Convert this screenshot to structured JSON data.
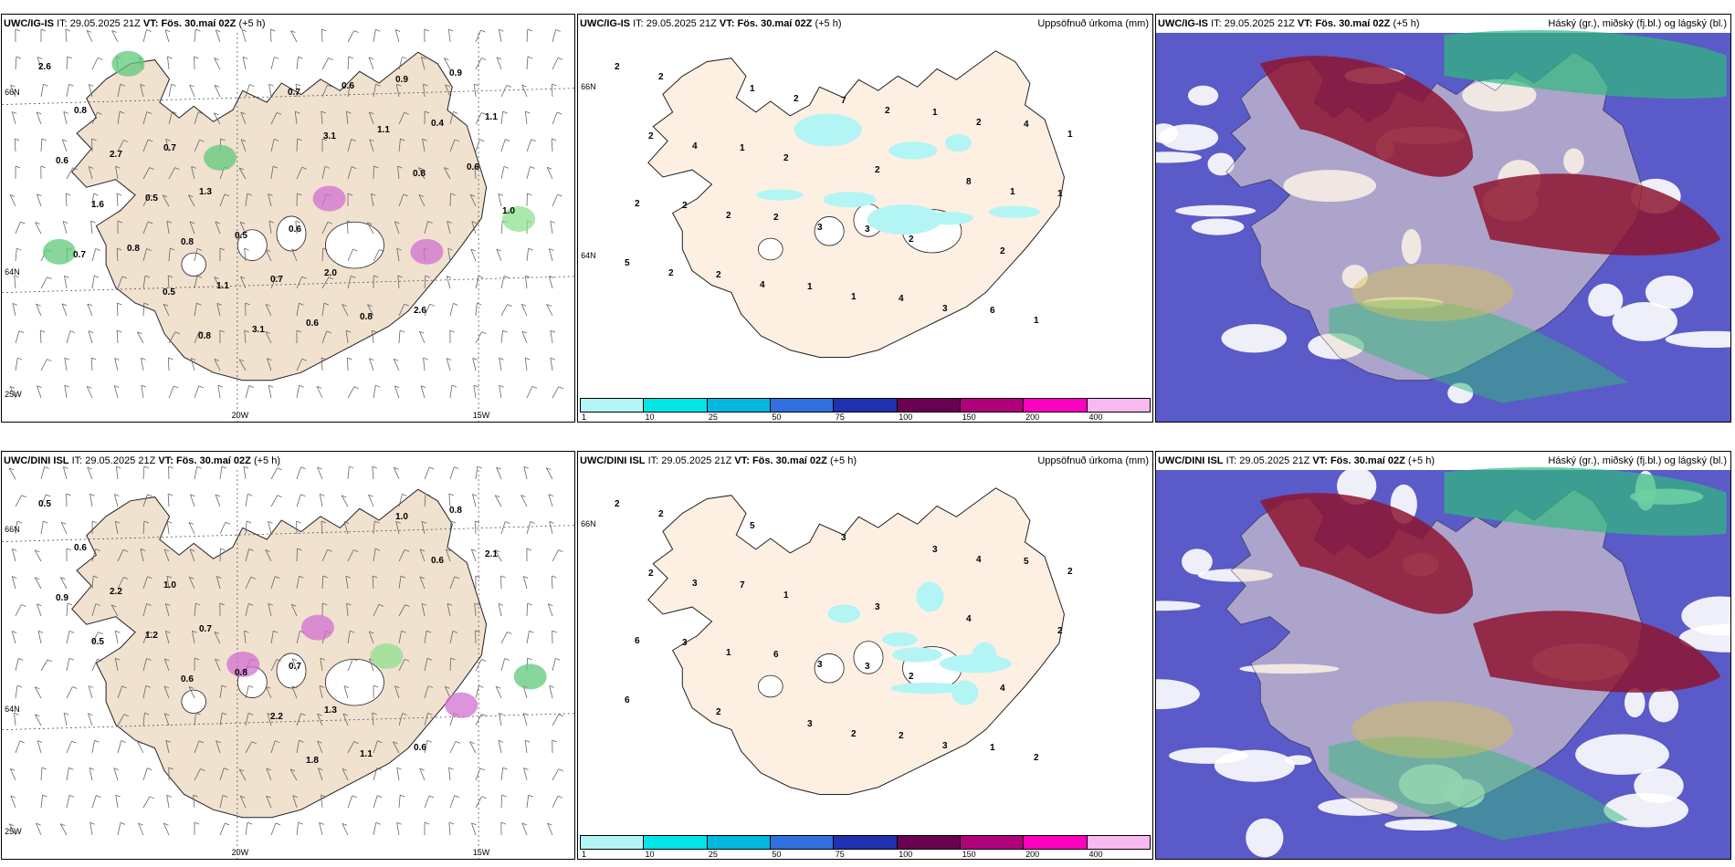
{
  "panels": [
    {
      "row": "top",
      "col": "wind",
      "model": "UWC/IG-IS",
      "it_label": "IT:",
      "it": "29.05.2025 21Z",
      "vt_label": "VT:",
      "vt": "Fös. 30.maí 02Z",
      "lead": "(+5 h)",
      "right": "",
      "axis_labels": [
        "20W",
        "15W",
        "66N",
        "64N",
        "25W"
      ]
    },
    {
      "row": "top",
      "col": "precip",
      "model": "UWC/IG-IS",
      "it_label": "IT:",
      "it": "29.05.2025 21Z",
      "vt_label": "VT:",
      "vt": "Fös. 30.maí 02Z",
      "lead": "(+5 h)",
      "right": "Uppsöfnuð úrkoma (mm)",
      "axis_labels": [
        "66N",
        "64N"
      ]
    },
    {
      "row": "top",
      "col": "cloud",
      "model": "UWC/IG-IS",
      "it_label": "IT:",
      "it": "29.05.2025 21Z",
      "vt_label": "VT:",
      "vt": "Fös. 30.maí 02Z",
      "lead": "(+5 h)",
      "right": "Háský (gr.), miðský (fj.bl.) og lágský (bl.)",
      "axis_labels": []
    },
    {
      "row": "bottom",
      "col": "wind",
      "model": "UWC/DINI ISL",
      "it_label": "IT:",
      "it": "29.05.2025 21Z",
      "vt_label": "VT:",
      "vt": "Fös. 30.maí 02Z",
      "lead": "(+5 h)",
      "right": "",
      "axis_labels": [
        "20W",
        "15W",
        "66N",
        "64N",
        "25W"
      ]
    },
    {
      "row": "bottom",
      "col": "precip",
      "model": "UWC/DINI ISL",
      "it_label": "IT:",
      "it": "29.05.2025 21Z",
      "vt_label": "VT:",
      "vt": "Fös. 30.maí 02Z",
      "lead": "(+5 h)",
      "right": "Uppsöfnuð úrkoma (mm)",
      "axis_labels": [
        "66N"
      ]
    },
    {
      "row": "bottom",
      "col": "cloud",
      "model": "UWC/DINI ISL",
      "it_label": "IT:",
      "it": "29.05.2025 21Z",
      "vt_label": "VT:",
      "vt": "Fös. 30.maí 02Z",
      "lead": "(+5 h)",
      "right": "Háský (gr.), miðský (fj.bl.) og lágský (bl.)",
      "axis_labels": []
    }
  ],
  "colorbar": {
    "ticks": [
      "1",
      "10",
      "25",
      "50",
      "75",
      "100",
      "150",
      "200",
      "400"
    ],
    "colors": [
      "#b3f5f5",
      "#00e5e5",
      "#00b8e0",
      "#2f6fe0",
      "#2030b0",
      "#6a0050",
      "#b0007a",
      "#ff00c0",
      "#f8b8f0"
    ]
  },
  "colors": {
    "land": "#f1e1cf",
    "land_precip": "#fdf0e2",
    "cloud_mid": "#5a5ac8",
    "cloud_high": "#8e1530",
    "cloud_low": "#2fba7a"
  },
  "wind_top_labels": [
    "2.6",
    "0.7",
    "0.6",
    "2.6",
    "0.8",
    "1.3",
    "2.0",
    "0.9",
    "2.7",
    "0.5",
    "0.8",
    "1.1",
    "0.5",
    "0.7",
    "0.9",
    "0.6",
    "0.8",
    "0.6",
    "0.4",
    "1.6",
    "1.1",
    "0.6",
    "0.6",
    "0.8",
    "3.1",
    "1.1",
    "1.0",
    "0.5",
    "0.7",
    "0.8",
    "0.7",
    "0.8",
    "3.1"
  ],
  "wind_bottom_labels": [
    "0.5",
    "1.0",
    "0.7",
    "0.6",
    "0.6",
    "0.7",
    "1.3",
    "0.8",
    "2.2",
    "0.8",
    "1.1",
    "2.1",
    "1.2",
    "2.2",
    "1.0",
    "0.9",
    "0.6",
    "1.8",
    "0.6",
    "0.5"
  ],
  "precip_top_labels": [
    "2",
    "1",
    "3",
    "6",
    "2",
    "2",
    "4",
    "4",
    "2",
    "1",
    "1",
    "1",
    "2",
    "7",
    "8",
    "5",
    "1",
    "2",
    "2",
    "2",
    "2",
    "2",
    "1",
    "4",
    "3",
    "3",
    "1",
    "2",
    "1",
    "2",
    "2",
    "4",
    "2",
    "1",
    "2",
    "2"
  ],
  "precip_bottom_labels": [
    "2",
    "7",
    "3",
    "1",
    "2",
    "6",
    "2",
    "5",
    "3",
    "3",
    "3",
    "2",
    "2",
    "3",
    "4",
    "6",
    "5",
    "3",
    "4",
    "2",
    "1",
    "2",
    "2",
    "3",
    "3",
    "3",
    "2",
    "1",
    "2",
    "4",
    "6"
  ]
}
